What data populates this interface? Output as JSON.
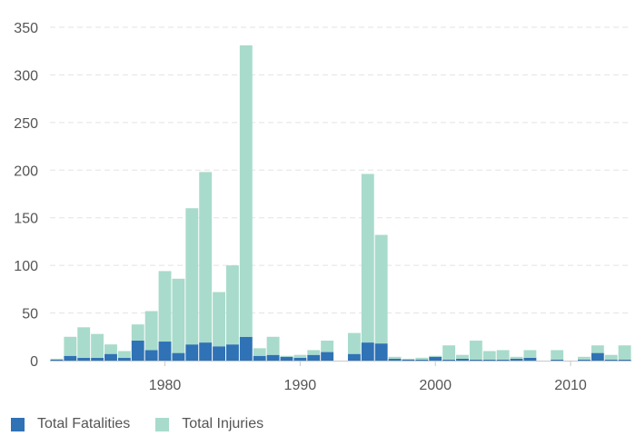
{
  "chart_data": {
    "type": "bar",
    "stacked": true,
    "x": [
      1972,
      1973,
      1974,
      1975,
      1976,
      1977,
      1978,
      1979,
      1980,
      1981,
      1982,
      1983,
      1984,
      1985,
      1986,
      1987,
      1988,
      1989,
      1990,
      1991,
      1992,
      1993,
      1994,
      1995,
      1996,
      1997,
      1998,
      1999,
      2000,
      2001,
      2002,
      2003,
      2004,
      2005,
      2006,
      2007,
      2008,
      2009,
      2010,
      2011,
      2012,
      2013,
      2014
    ],
    "series": [
      {
        "name": "Total Fatalities",
        "color": "#2f72b5",
        "values": [
          1,
          5,
          3,
          3,
          7,
          3,
          21,
          11,
          20,
          8,
          17,
          19,
          15,
          17,
          25,
          5,
          6,
          4,
          3,
          6,
          9,
          0,
          7,
          19,
          18,
          2,
          1,
          1,
          4,
          1,
          2,
          1,
          1,
          1,
          2,
          3,
          0,
          1,
          0,
          1,
          8,
          1,
          1
        ]
      },
      {
        "name": "Total Injuries",
        "color": "#a8dbcb",
        "values": [
          1,
          20,
          32,
          25,
          10,
          7,
          17,
          41,
          74,
          78,
          143,
          179,
          57,
          83,
          306,
          8,
          19,
          1,
          3,
          5,
          12,
          0,
          22,
          177,
          114,
          2,
          1,
          2,
          1,
          15,
          4,
          20,
          9,
          10,
          2,
          8,
          0,
          10,
          0,
          3,
          8,
          5,
          15
        ]
      }
    ],
    "xlim": [
      1971.5,
      2014.5
    ],
    "xticks": [
      1980,
      1990,
      2000,
      2010
    ],
    "ylim": [
      0,
      350
    ],
    "yticks": [
      0,
      50,
      100,
      150,
      200,
      250,
      300,
      350
    ],
    "grid": true,
    "legend_position": "bottom-left",
    "title": "",
    "xlabel": "",
    "ylabel": ""
  },
  "legend": {
    "fatalities_label": "Total Fatalities",
    "injuries_label": "Total Injuries"
  }
}
